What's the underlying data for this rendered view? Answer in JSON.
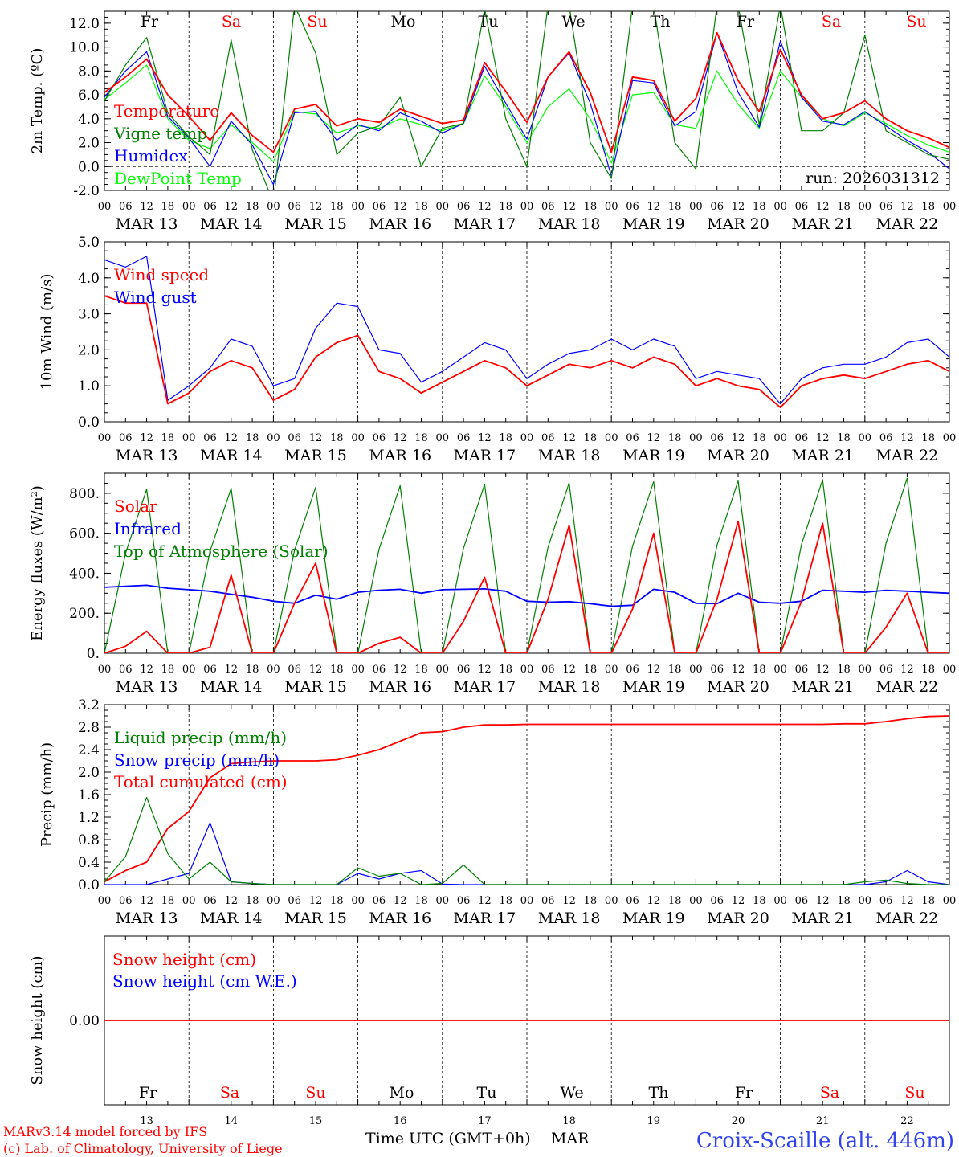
{
  "colors": {
    "red": "#ff0000",
    "green": "#008000",
    "blue": "#0000ff",
    "lightgreen": "#00ff00",
    "black": "#000000",
    "stationblue": "#3344ee"
  },
  "days": [
    {
      "abbr": "Fr",
      "weekend": false,
      "date": "MAR 13",
      "num": "13"
    },
    {
      "abbr": "Sa",
      "weekend": true,
      "date": "MAR 14",
      "num": "14"
    },
    {
      "abbr": "Su",
      "weekend": true,
      "date": "MAR 15",
      "num": "15"
    },
    {
      "abbr": "Mo",
      "weekend": false,
      "date": "MAR 16",
      "num": "16"
    },
    {
      "abbr": "Tu",
      "weekend": false,
      "date": "MAR 17",
      "num": "17"
    },
    {
      "abbr": "We",
      "weekend": false,
      "date": "MAR 18",
      "num": "18"
    },
    {
      "abbr": "Th",
      "weekend": false,
      "date": "MAR 19",
      "num": "19"
    },
    {
      "abbr": "Fr",
      "weekend": false,
      "date": "MAR 20",
      "num": "20"
    },
    {
      "abbr": "Sa",
      "weekend": true,
      "date": "MAR 21",
      "num": "21"
    },
    {
      "abbr": "Su",
      "weekend": true,
      "date": "MAR 22",
      "num": "22"
    }
  ],
  "hour_ticks": [
    "00",
    "06",
    "12",
    "18",
    "00",
    "06",
    "12",
    "18",
    "00",
    "06",
    "12",
    "18",
    "00",
    "06",
    "12",
    "18",
    "00",
    "06",
    "12",
    "18",
    "00",
    "06",
    "12",
    "18",
    "00",
    "06",
    "12",
    "18",
    "00",
    "06",
    "12",
    "18",
    "00",
    "06",
    "12",
    "18",
    "00",
    "06",
    "12",
    "18",
    "00"
  ],
  "footer": {
    "model": "MARv3.14 model forced by IFS",
    "copyright": "(c) Lab. of Climatology, University of Liege",
    "xlabel": "Time UTC (GMT+0h)",
    "month": "MAR",
    "station": "Croix-Scaille (alt. 446m)"
  },
  "chart_data": [
    {
      "id": "temperature",
      "type": "line",
      "ylabel": "2m Temp. (ºC)",
      "ylim": [
        -2,
        13
      ],
      "yticks": [
        "-2.0",
        "0.0",
        "2.0",
        "4.0",
        "6.0",
        "8.0",
        "10.0",
        "12.0"
      ],
      "ytick_values": [
        -2,
        0,
        2,
        4,
        6,
        8,
        10,
        12
      ],
      "zero_line": true,
      "annotation": "run: 2026031312",
      "x_hours": [
        0,
        6,
        12,
        18,
        24,
        30,
        36,
        42,
        48,
        54,
        60,
        66,
        72,
        78,
        84,
        90,
        96,
        102,
        108,
        114,
        120,
        126,
        132,
        138,
        144,
        150,
        156,
        162,
        168,
        174,
        180,
        186,
        192,
        198,
        204,
        210,
        216,
        222,
        228,
        234,
        240
      ],
      "series": [
        {
          "name": "Temperature",
          "color": "red",
          "values": [
            6.2,
            7.5,
            9.0,
            6.0,
            4.2,
            2.2,
            4.5,
            2.6,
            1.2,
            4.8,
            5.2,
            3.4,
            4.0,
            3.7,
            4.8,
            4.2,
            3.6,
            3.9,
            8.7,
            6.3,
            3.7,
            7.5,
            9.6,
            6.2,
            1.2,
            7.5,
            7.2,
            3.8,
            5.7,
            11.2,
            7.2,
            4.6,
            9.8,
            6.0,
            4.0,
            4.5,
            5.5,
            4.0,
            3.0,
            2.4,
            1.6
          ]
        },
        {
          "name": "Vigne temp",
          "color": "green",
          "values": [
            5.5,
            8.5,
            10.8,
            4.5,
            2.5,
            1.0,
            10.6,
            1.4,
            -3.0,
            13.5,
            9.5,
            1.0,
            2.8,
            3.4,
            5.8,
            0.0,
            3.2,
            3.6,
            13.2,
            4.0,
            0.0,
            13.5,
            13.5,
            2.0,
            -1.0,
            13.5,
            13.5,
            2.0,
            -0.2,
            13.5,
            13.5,
            3.5,
            13.5,
            3.0,
            3.0,
            4.5,
            11.0,
            3.0,
            2.0,
            1.0,
            0.6
          ]
        },
        {
          "name": "Humidex",
          "color": "blue",
          "values": [
            5.8,
            8.0,
            9.6,
            4.2,
            2.4,
            0.0,
            3.8,
            1.8,
            -1.5,
            4.5,
            4.6,
            2.2,
            3.5,
            3.0,
            4.5,
            3.8,
            2.8,
            3.6,
            8.4,
            5.3,
            2.3,
            7.5,
            9.5,
            5.3,
            -0.8,
            7.2,
            7.0,
            3.4,
            4.6,
            11.2,
            6.2,
            3.3,
            10.5,
            5.8,
            3.8,
            3.5,
            4.6,
            3.4,
            2.2,
            1.2,
            -0.2
          ]
        },
        {
          "name": "DewPoint Temp",
          "color": "lightgreen",
          "values": [
            5.6,
            7.0,
            8.5,
            4.0,
            2.2,
            1.5,
            3.5,
            2.0,
            0.4,
            4.6,
            4.4,
            2.8,
            3.4,
            3.2,
            4.0,
            3.5,
            3.0,
            3.6,
            7.6,
            5.0,
            2.0,
            5.0,
            6.5,
            4.0,
            0.3,
            6.0,
            6.2,
            3.5,
            3.2,
            8.0,
            5.2,
            3.2,
            8.0,
            5.8,
            4.0,
            3.4,
            4.5,
            3.6,
            2.6,
            1.8,
            1.2
          ]
        }
      ]
    },
    {
      "id": "wind",
      "type": "line",
      "ylabel": "10m Wind (m/s)",
      "ylim": [
        0,
        5
      ],
      "yticks": [
        "0.0",
        "1.0",
        "2.0",
        "3.0",
        "4.0",
        "5.0"
      ],
      "ytick_values": [
        0,
        1,
        2,
        3,
        4,
        5
      ],
      "x_hours": [
        0,
        6,
        12,
        18,
        24,
        30,
        36,
        42,
        48,
        54,
        60,
        66,
        72,
        78,
        84,
        90,
        96,
        102,
        108,
        114,
        120,
        126,
        132,
        138,
        144,
        150,
        156,
        162,
        168,
        174,
        180,
        186,
        192,
        198,
        204,
        210,
        216,
        222,
        228,
        234,
        240
      ],
      "series": [
        {
          "name": "Wind speed",
          "color": "red",
          "values": [
            3.5,
            3.3,
            3.3,
            0.5,
            0.8,
            1.4,
            1.7,
            1.5,
            0.6,
            0.9,
            1.8,
            2.2,
            2.4,
            1.4,
            1.2,
            0.8,
            1.1,
            1.4,
            1.7,
            1.5,
            1.0,
            1.3,
            1.6,
            1.5,
            1.7,
            1.5,
            1.8,
            1.6,
            1.0,
            1.2,
            1.0,
            0.9,
            0.4,
            1.0,
            1.2,
            1.3,
            1.2,
            1.4,
            1.6,
            1.7,
            1.4
          ]
        },
        {
          "name": "Wind gust",
          "color": "blue",
          "values": [
            4.5,
            4.3,
            4.6,
            0.6,
            1.0,
            1.5,
            2.3,
            2.1,
            1.0,
            1.2,
            2.6,
            3.3,
            3.2,
            2.0,
            1.9,
            1.1,
            1.4,
            1.8,
            2.2,
            2.0,
            1.2,
            1.6,
            1.9,
            2.0,
            2.3,
            2.0,
            2.3,
            2.1,
            1.2,
            1.4,
            1.3,
            1.2,
            0.5,
            1.2,
            1.5,
            1.6,
            1.6,
            1.8,
            2.2,
            2.3,
            1.8
          ]
        }
      ]
    },
    {
      "id": "energy",
      "type": "line",
      "ylabel": "Energy fluxes (W/m²)",
      "ylim": [
        0,
        900
      ],
      "yticks": [
        "0.",
        "200.",
        "400.",
        "600.",
        "800."
      ],
      "ytick_values": [
        0,
        200,
        400,
        600,
        800
      ],
      "x_hours": [
        0,
        6,
        12,
        18,
        24,
        30,
        36,
        42,
        48,
        54,
        60,
        66,
        72,
        78,
        84,
        90,
        96,
        102,
        108,
        114,
        120,
        126,
        132,
        138,
        144,
        150,
        156,
        162,
        168,
        174,
        180,
        186,
        192,
        198,
        204,
        210,
        216,
        222,
        228,
        234,
        240
      ],
      "series": [
        {
          "name": "Solar",
          "color": "red",
          "values": [
            0,
            35,
            110,
            0,
            0,
            30,
            390,
            0,
            0,
            250,
            450,
            0,
            0,
            50,
            80,
            0,
            0,
            160,
            380,
            0,
            0,
            270,
            640,
            0,
            0,
            220,
            600,
            0,
            0,
            270,
            660,
            0,
            0,
            260,
            650,
            0,
            0,
            130,
            300,
            0,
            0
          ]
        },
        {
          "name": "Infrared",
          "color": "blue",
          "values": [
            330,
            335,
            340,
            325,
            318,
            310,
            295,
            280,
            260,
            250,
            290,
            270,
            305,
            315,
            320,
            300,
            318,
            320,
            322,
            310,
            260,
            255,
            258,
            248,
            235,
            240,
            320,
            305,
            250,
            248,
            300,
            255,
            250,
            260,
            315,
            310,
            305,
            315,
            310,
            305,
            300
          ]
        },
        {
          "name": "Top of Atmosphere (Solar)",
          "color": "green",
          "values": [
            0,
            500,
            820,
            0,
            0,
            510,
            825,
            0,
            0,
            515,
            830,
            0,
            0,
            520,
            838,
            0,
            0,
            525,
            845,
            0,
            0,
            530,
            852,
            0,
            0,
            535,
            858,
            0,
            0,
            540,
            862,
            0,
            0,
            545,
            868,
            0,
            0,
            550,
            875,
            0,
            0
          ]
        }
      ]
    },
    {
      "id": "precip",
      "type": "line",
      "ylabel": "Precip (mm/h)",
      "ylim": [
        0,
        3.2
      ],
      "yticks": [
        "0.0",
        "0.4",
        "0.8",
        "1.2",
        "1.6",
        "2.0",
        "2.4",
        "2.8",
        "3.2"
      ],
      "ytick_values": [
        0,
        0.4,
        0.8,
        1.2,
        1.6,
        2.0,
        2.4,
        2.8,
        3.2
      ],
      "x_hours": [
        0,
        6,
        12,
        18,
        24,
        30,
        36,
        42,
        48,
        54,
        60,
        66,
        72,
        78,
        84,
        90,
        96,
        102,
        108,
        114,
        120,
        126,
        132,
        138,
        144,
        150,
        156,
        162,
        168,
        174,
        180,
        186,
        192,
        198,
        204,
        210,
        216,
        222,
        228,
        234,
        240
      ],
      "series": [
        {
          "name": "Liquid precip (mm/h)",
          "color": "green",
          "values": [
            0.05,
            0.5,
            1.55,
            0.55,
            0.1,
            0.4,
            0.05,
            0.02,
            0,
            0,
            0,
            0,
            0.3,
            0.15,
            0.2,
            0,
            0.02,
            0.35,
            0,
            0,
            0,
            0,
            0,
            0,
            0,
            0,
            0,
            0,
            0,
            0,
            0,
            0,
            0,
            0,
            0,
            0,
            0.05,
            0.08,
            0.02,
            0,
            0
          ]
        },
        {
          "name": "Snow precip (mm/h)",
          "color": "blue",
          "values": [
            0,
            0,
            0,
            0.1,
            0.2,
            1.1,
            0.05,
            0.02,
            0,
            0,
            0,
            0,
            0.2,
            0.1,
            0.2,
            0.25,
            0.01,
            0,
            0,
            0,
            0,
            0,
            0,
            0,
            0,
            0,
            0,
            0,
            0,
            0,
            0,
            0,
            0,
            0,
            0,
            0,
            0,
            0.05,
            0.25,
            0.05,
            0
          ]
        },
        {
          "name": "Total cumulated (cm)",
          "color": "red",
          "values": [
            0.05,
            0.25,
            0.4,
            1.0,
            1.3,
            1.9,
            2.15,
            2.18,
            2.2,
            2.2,
            2.2,
            2.22,
            2.3,
            2.4,
            2.55,
            2.7,
            2.72,
            2.8,
            2.84,
            2.84,
            2.85,
            2.85,
            2.85,
            2.85,
            2.85,
            2.85,
            2.85,
            2.85,
            2.85,
            2.85,
            2.85,
            2.85,
            2.85,
            2.85,
            2.85,
            2.86,
            2.86,
            2.9,
            2.95,
            2.99,
            3.0
          ]
        }
      ]
    },
    {
      "id": "snow",
      "type": "line",
      "ylabel": "Snow height (cm)",
      "ylim": [
        -1,
        1
      ],
      "yticks": [
        "0.00"
      ],
      "ytick_values": [
        0
      ],
      "x_hours": [
        0,
        240
      ],
      "series": [
        {
          "name": "Snow height (cm)",
          "color": "red",
          "values": [
            0,
            0
          ]
        },
        {
          "name": "Snow height (cm W.E.)",
          "color": "blue",
          "values": [
            0,
            0
          ]
        }
      ]
    }
  ]
}
